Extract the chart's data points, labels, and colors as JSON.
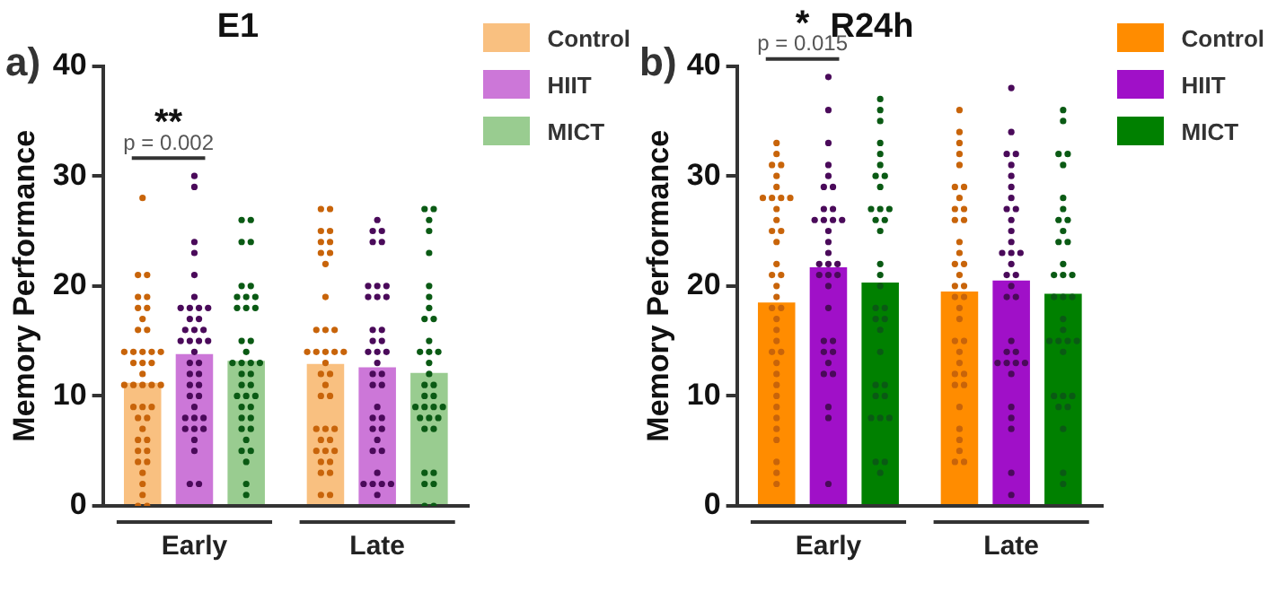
{
  "chart_data": [
    {
      "type": "bar",
      "title": "E1",
      "ylabel": "Memory Performance",
      "categories": [
        "Early",
        "Late"
      ],
      "ylim": [
        0,
        40
      ],
      "yticks": [
        0,
        10,
        20,
        30,
        40
      ],
      "legend": "top right",
      "marker": "circle",
      "annotations": [
        "a)",
        "**",
        "p = 0.002"
      ],
      "series": [
        {
          "name": "Control",
          "color": "#f9c080",
          "values": [
            11.2,
            12.9
          ]
        },
        {
          "name": "HIIT",
          "color": "#cc77d8",
          "values": [
            13.8,
            12.6
          ]
        },
        {
          "name": "MICT",
          "color": "#99cc90",
          "values": [
            13.2,
            12.1
          ]
        },
        {
          "type": "scatter",
          "color": "#c8640a",
          "x": [
            "Early",
            "Early",
            "Early",
            "Early",
            "Early",
            "Early",
            "Early",
            "Early",
            "Early",
            "Early",
            "Early",
            "Early",
            "Early",
            "Early",
            "Early",
            "Early",
            "Early",
            "Early",
            "Early",
            "Early",
            "Early",
            "Early",
            "Early",
            "Early",
            "Early",
            "Early",
            "Early",
            "Early",
            "Early",
            "Early",
            "Early",
            "Early",
            "Early",
            "Early",
            "Early",
            "Early",
            "Early",
            "Early",
            "Early",
            "Early",
            "Early"
          ],
          "values": [
            28,
            21,
            21,
            19,
            19,
            18,
            18,
            17,
            16,
            16,
            14,
            14,
            14,
            14,
            14,
            13,
            13,
            13,
            12,
            11,
            11,
            11,
            11,
            11,
            9,
            9,
            9,
            8,
            8,
            7,
            6,
            6,
            5,
            5,
            4,
            4,
            3,
            2,
            1,
            0,
            0
          ]
        },
        {
          "type": "scatter",
          "color": "#4a0a5a",
          "x": [
            "Early",
            "Early",
            "Early",
            "Early",
            "Early",
            "Early",
            "Early",
            "Early",
            "Early",
            "Early",
            "Early",
            "Early",
            "Early",
            "Early",
            "Early",
            "Early",
            "Early",
            "Early",
            "Early",
            "Early",
            "Early",
            "Early",
            "Early",
            "Early",
            "Early",
            "Early",
            "Early",
            "Early",
            "Early",
            "Early",
            "Early",
            "Early",
            "Early",
            "Early",
            "Early",
            "Early",
            "Early",
            "Early",
            "Early"
          ],
          "values": [
            30,
            29,
            24,
            23,
            21,
            19,
            18,
            18,
            18,
            18,
            17,
            17,
            16,
            16,
            16,
            15,
            15,
            15,
            15,
            14,
            13,
            13,
            12,
            12,
            11,
            11,
            10,
            10,
            9,
            8,
            8,
            8,
            7,
            7,
            7,
            6,
            5,
            2,
            2
          ]
        },
        {
          "type": "scatter",
          "color": "#0a5a14",
          "x": [
            "Early",
            "Early",
            "Early",
            "Early",
            "Early",
            "Early",
            "Early",
            "Early",
            "Early",
            "Early",
            "Early",
            "Early",
            "Early",
            "Early",
            "Early",
            "Early",
            "Early",
            "Early",
            "Early",
            "Early",
            "Early",
            "Early",
            "Early",
            "Early",
            "Early",
            "Early",
            "Early",
            "Early",
            "Early",
            "Early",
            "Early",
            "Early",
            "Early",
            "Early",
            "Early",
            "Early",
            "Early",
            "Early"
          ],
          "values": [
            26,
            26,
            24,
            24,
            20,
            20,
            19,
            19,
            19,
            18,
            18,
            18,
            15,
            15,
            14,
            13,
            13,
            13,
            13,
            12,
            12,
            11,
            11,
            10,
            10,
            10,
            9,
            9,
            8,
            8,
            7,
            7,
            6,
            5,
            5,
            4,
            2,
            1
          ]
        },
        {
          "type": "scatter",
          "color": "#c8640a",
          "x": [
            "Late",
            "Late",
            "Late",
            "Late",
            "Late",
            "Late",
            "Late",
            "Late",
            "Late",
            "Late",
            "Late",
            "Late",
            "Late",
            "Late",
            "Late",
            "Late",
            "Late",
            "Late",
            "Late",
            "Late",
            "Late",
            "Late",
            "Late",
            "Late",
            "Late",
            "Late",
            "Late",
            "Late",
            "Late",
            "Late",
            "Late",
            "Late",
            "Late",
            "Late",
            "Late",
            "Late",
            "Late",
            "Late"
          ],
          "values": [
            27,
            27,
            25,
            25,
            24,
            24,
            23,
            23,
            22,
            19,
            16,
            16,
            16,
            14,
            14,
            14,
            14,
            14,
            13,
            12,
            12,
            11,
            10,
            10,
            7,
            7,
            7,
            6,
            6,
            5,
            5,
            5,
            4,
            4,
            3,
            3,
            1,
            1
          ]
        },
        {
          "type": "scatter",
          "color": "#4a0a5a",
          "x": [
            "Late",
            "Late",
            "Late",
            "Late",
            "Late",
            "Late",
            "Late",
            "Late",
            "Late",
            "Late",
            "Late",
            "Late",
            "Late",
            "Late",
            "Late",
            "Late",
            "Late",
            "Late",
            "Late",
            "Late",
            "Late",
            "Late",
            "Late",
            "Late",
            "Late",
            "Late",
            "Late",
            "Late",
            "Late",
            "Late",
            "Late",
            "Late",
            "Late",
            "Late",
            "Late",
            "Late",
            "Late"
          ],
          "values": [
            26,
            25,
            25,
            24,
            24,
            20,
            20,
            20,
            19,
            19,
            19,
            16,
            16,
            15,
            15,
            14,
            14,
            14,
            13,
            12,
            12,
            11,
            11,
            9,
            8,
            8,
            7,
            7,
            6,
            5,
            5,
            3,
            2,
            2,
            2,
            2,
            1
          ]
        },
        {
          "type": "scatter",
          "color": "#0a5a14",
          "x": [
            "Late",
            "Late",
            "Late",
            "Late",
            "Late",
            "Late",
            "Late",
            "Late",
            "Late",
            "Late",
            "Late",
            "Late",
            "Late",
            "Late",
            "Late",
            "Late",
            "Late",
            "Late",
            "Late",
            "Late",
            "Late",
            "Late",
            "Late",
            "Late",
            "Late",
            "Late",
            "Late",
            "Late",
            "Late",
            "Late",
            "Late",
            "Late",
            "Late",
            "Late",
            "Late"
          ],
          "values": [
            27,
            27,
            26,
            25,
            23,
            20,
            19,
            18,
            17,
            17,
            15,
            14,
            14,
            14,
            13,
            12,
            11,
            11,
            10,
            10,
            9,
            9,
            9,
            9,
            8,
            8,
            8,
            7,
            7,
            3,
            3,
            2,
            2,
            0,
            0
          ]
        }
      ]
    },
    {
      "type": "bar",
      "title": "R24h",
      "ylabel": "Memory Performance",
      "categories": [
        "Early",
        "Late"
      ],
      "ylim": [
        0,
        40
      ],
      "yticks": [
        0,
        10,
        20,
        30,
        40
      ],
      "legend": "top right",
      "marker": "circle",
      "annotations": [
        "b)",
        "*",
        "p = 0.015"
      ],
      "series": [
        {
          "name": "Control",
          "color": "#ff8c00",
          "values": [
            18.5,
            19.5
          ]
        },
        {
          "name": "HIIT",
          "color": "#a010c8",
          "values": [
            21.7,
            20.5
          ]
        },
        {
          "name": "MICT",
          "color": "#008000",
          "values": [
            20.3,
            19.3
          ]
        },
        {
          "type": "scatter",
          "color": "#c8640a",
          "x": [
            "Early",
            "Early",
            "Early",
            "Early",
            "Early",
            "Early",
            "Early",
            "Early",
            "Early",
            "Early",
            "Early",
            "Early",
            "Early",
            "Early",
            "Early",
            "Early",
            "Early",
            "Early",
            "Early",
            "Early",
            "Early",
            "Early",
            "Early",
            "Early",
            "Early",
            "Early",
            "Early",
            "Early",
            "Early",
            "Early",
            "Early",
            "Early",
            "Early",
            "Early",
            "Early",
            "Early",
            "Early",
            "Early"
          ],
          "values": [
            33,
            32,
            31,
            31,
            30,
            29,
            28,
            28,
            28,
            28,
            27,
            26,
            25,
            25,
            24,
            22,
            21,
            21,
            20,
            19,
            18,
            18,
            17,
            16,
            15,
            14,
            14,
            13,
            12,
            11,
            10,
            9,
            8,
            7,
            6,
            4,
            3,
            2
          ]
        },
        {
          "type": "scatter",
          "color": "#4a0a5a",
          "x": [
            "Early",
            "Early",
            "Early",
            "Early",
            "Early",
            "Early",
            "Early",
            "Early",
            "Early",
            "Early",
            "Early",
            "Early",
            "Early",
            "Early",
            "Early",
            "Early",
            "Early",
            "Early",
            "Early",
            "Early",
            "Early",
            "Early",
            "Early",
            "Early",
            "Early",
            "Early",
            "Early",
            "Early",
            "Early",
            "Early",
            "Early",
            "Early",
            "Early",
            "Early"
          ],
          "values": [
            39,
            36,
            33,
            31,
            30,
            29,
            29,
            27,
            27,
            26,
            26,
            26,
            26,
            25,
            24,
            23,
            22,
            22,
            22,
            21,
            21,
            21,
            20,
            18,
            15,
            15,
            14,
            14,
            13,
            12,
            12,
            9,
            8,
            2
          ]
        },
        {
          "type": "scatter",
          "color": "#0a5a14",
          "x": [
            "Early",
            "Early",
            "Early",
            "Early",
            "Early",
            "Early",
            "Early",
            "Early",
            "Early",
            "Early",
            "Early",
            "Early",
            "Early",
            "Early",
            "Early",
            "Early",
            "Early",
            "Early",
            "Early",
            "Early",
            "Early",
            "Early",
            "Early",
            "Early",
            "Early",
            "Early",
            "Early",
            "Early",
            "Early",
            "Early",
            "Early",
            "Early",
            "Early",
            "Early"
          ],
          "values": [
            37,
            36,
            35,
            33,
            32,
            31,
            30,
            30,
            29,
            27,
            27,
            27,
            26,
            26,
            25,
            22,
            21,
            20,
            18,
            18,
            17,
            17,
            16,
            14,
            11,
            11,
            10,
            10,
            8,
            8,
            8,
            4,
            4,
            3
          ]
        },
        {
          "type": "scatter",
          "color": "#c8640a",
          "x": [
            "Late",
            "Late",
            "Late",
            "Late",
            "Late",
            "Late",
            "Late",
            "Late",
            "Late",
            "Late",
            "Late",
            "Late",
            "Late",
            "Late",
            "Late",
            "Late",
            "Late",
            "Late",
            "Late",
            "Late",
            "Late",
            "Late",
            "Late",
            "Late",
            "Late",
            "Late",
            "Late",
            "Late",
            "Late",
            "Late",
            "Late",
            "Late",
            "Late",
            "Late",
            "Late",
            "Late",
            "Late"
          ],
          "values": [
            36,
            34,
            33,
            32,
            31,
            29,
            29,
            28,
            27,
            27,
            26,
            26,
            24,
            23,
            22,
            22,
            21,
            20,
            20,
            19,
            19,
            18,
            17,
            15,
            15,
            14,
            13,
            12,
            12,
            11,
            11,
            9,
            7,
            6,
            5,
            4,
            4
          ]
        },
        {
          "type": "scatter",
          "color": "#4a0a5a",
          "x": [
            "Late",
            "Late",
            "Late",
            "Late",
            "Late",
            "Late",
            "Late",
            "Late",
            "Late",
            "Late",
            "Late",
            "Late",
            "Late",
            "Late",
            "Late",
            "Late",
            "Late",
            "Late",
            "Late",
            "Late",
            "Late",
            "Late",
            "Late",
            "Late",
            "Late",
            "Late",
            "Late",
            "Late",
            "Late",
            "Late",
            "Late",
            "Late",
            "Late",
            "Late",
            "Late"
          ],
          "values": [
            38,
            34,
            32,
            32,
            31,
            30,
            29,
            28,
            27,
            27,
            26,
            25,
            24,
            23,
            23,
            23,
            22,
            21,
            21,
            20,
            19,
            19,
            15,
            14,
            14,
            13,
            13,
            13,
            13,
            12,
            9,
            8,
            7,
            3,
            1
          ]
        },
        {
          "type": "scatter",
          "color": "#0a5a14",
          "x": [
            "Late",
            "Late",
            "Late",
            "Late",
            "Late",
            "Late",
            "Late",
            "Late",
            "Late",
            "Late",
            "Late",
            "Late",
            "Late",
            "Late",
            "Late",
            "Late",
            "Late",
            "Late",
            "Late",
            "Late",
            "Late",
            "Late",
            "Late",
            "Late",
            "Late",
            "Late",
            "Late",
            "Late",
            "Late",
            "Late",
            "Late",
            "Late",
            "Late",
            "Late"
          ],
          "values": [
            36,
            35,
            32,
            32,
            31,
            28,
            27,
            26,
            26,
            25,
            24,
            24,
            22,
            21,
            21,
            21,
            19,
            19,
            19,
            17,
            16,
            15,
            15,
            15,
            15,
            14,
            10,
            10,
            10,
            9,
            9,
            7,
            3,
            2
          ]
        }
      ]
    }
  ]
}
